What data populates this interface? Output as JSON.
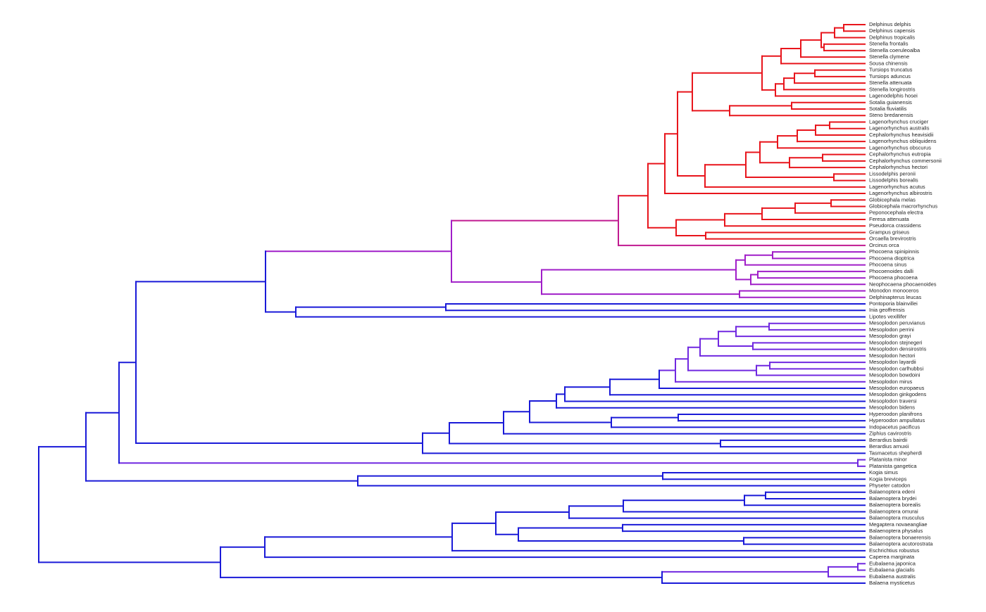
{
  "leaves": [
    "Delphinus delphis",
    "Delphinus capensis",
    "Delphinus tropicalis",
    "Stenella frontalis",
    "Stenella coeruleoalba",
    "Stenella clymene",
    "Sousa chinensis",
    "Tursiops truncatus",
    "Tursiops aduncus",
    "Stenella attenuata",
    "Stenella longirostris",
    "Lagenodelphis hosei",
    "Sotalia guianensis",
    "Sotalia fluviatilis",
    "Steno bredanensis",
    "Lagenorhynchus cruciger",
    "Lagenorhynchus australis",
    "Cephalorhynchus heavisidii",
    "Lagenorhynchus obliquidens",
    "Lagenorhynchus obscurus",
    "Cephalorhynchus eutropia",
    "Cephalorhynchus commersonii",
    "Cephalorhynchus hectori",
    "Lissodelphis peronii",
    "Lissodelphis borealis",
    "Lagenorhynchus acutus",
    "Lagenorhynchus albirostris",
    "Globicephala melas",
    "Globicephala macrorhynchus",
    "Peponocephala electra",
    "Feresa attenuata",
    "Pseudorca crassidens",
    "Grampus griseus",
    "Orcaella brevirostris",
    "Orcinus orca",
    "Phocoena spinipinnis",
    "Phocoena dioptrica",
    "Phocoena sinus",
    "Phocoenoides dalli",
    "Phocoena phocoena",
    "Neophocaena phocaenoides",
    "Monodon monoceros",
    "Delphinapterus leucas",
    "Pontoporia blainvillei",
    "Inia geoffrensis",
    "Lipotes vexillifer",
    "Mesoplodon peruvianus",
    "Mesoplodon perrini",
    "Mesoplodon grayi",
    "Mesoplodon stejnegeri",
    "Mesoplodon densirostris",
    "Mesoplodon hectori",
    "Mesoplodon layardii",
    "Mesoplodon carlhubbsi",
    "Mesoplodon bowdoini",
    "Mesoplodon mirus",
    "Mesoplodon europaeus",
    "Mesoplodon ginkgodens",
    "Mesoplodon traversi",
    "Mesoplodon bidens",
    "Hyperoodon planifrons",
    "Hyperoodon ampullatus",
    "Indopacetus pacificus",
    "Ziphius cavirostris",
    "Berardius bairdii",
    "Berardius arnuxii",
    "Tasmacetus shepherdi",
    "Platanista minor",
    "Platanista gangetica",
    "Kogia simus",
    "Kogia breviceps",
    "Physeter catodon",
    "Balaenoptera edeni",
    "Balaenoptera brydei",
    "Balaenoptera borealis",
    "Balaenoptera omurai",
    "Balaenoptera musculus",
    "Megaptera novaeangliae",
    "Balaenoptera physalus",
    "Balaenoptera bonaerensis",
    "Balaenoptera acutorostrata",
    "Eschrichtius robustus",
    "Caperea marginata",
    "Eubalaena japonica",
    "Eubalaena glacialis",
    "Eubalaena australis",
    "Balaena mysticetus"
  ]
}
